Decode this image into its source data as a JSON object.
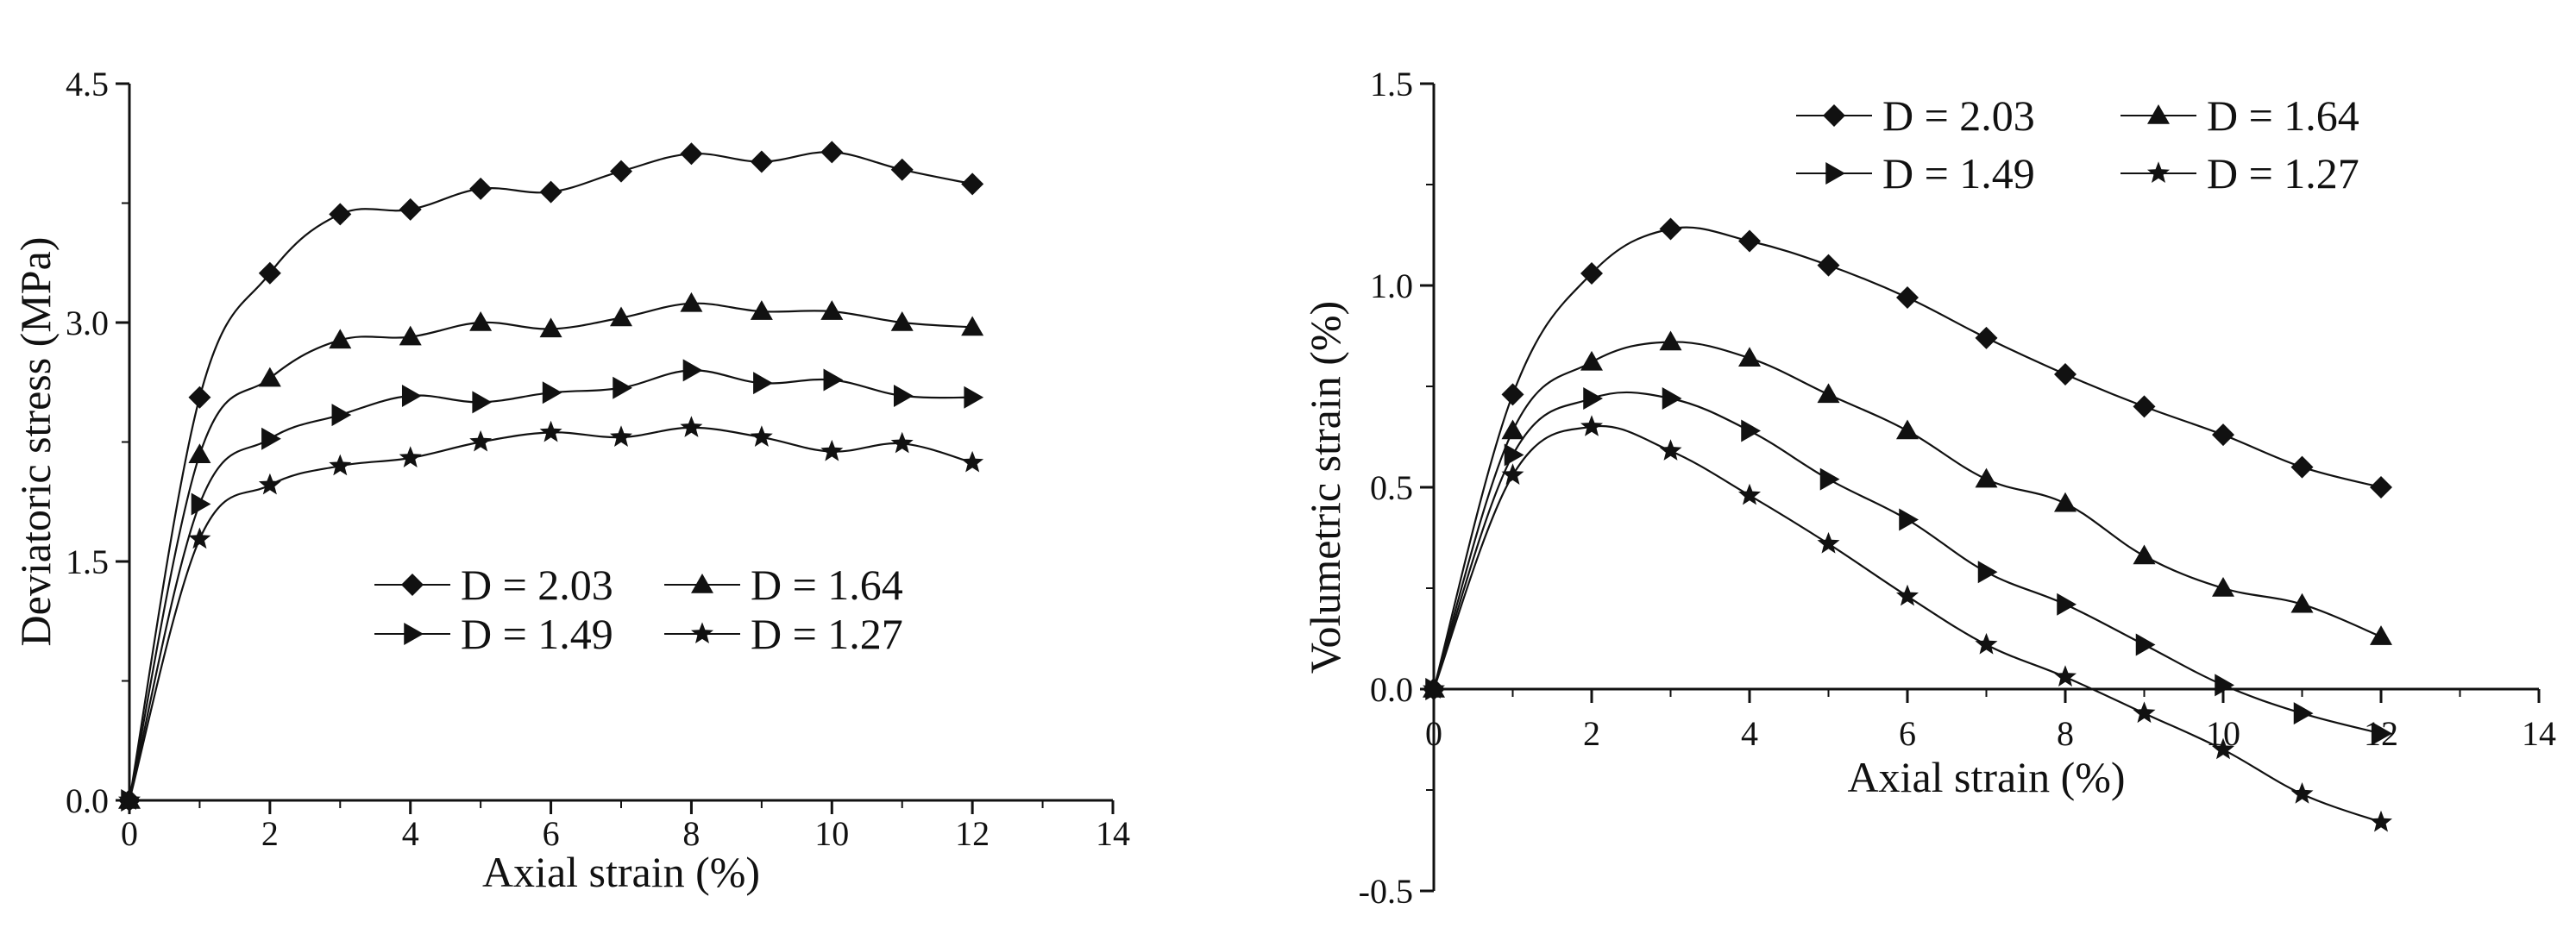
{
  "colors": {
    "ink": "#111111",
    "background": "#ffffff"
  },
  "marker_shapes": [
    "diamond",
    "triangle-up",
    "triangle-right",
    "star"
  ],
  "chart_data": [
    {
      "type": "line",
      "title": "",
      "xlabel": "Axial strain (%)",
      "ylabel": "Deviatoric stress (MPa)",
      "xlim": [
        0,
        14
      ],
      "ylim": [
        0,
        4.5
      ],
      "xticks": [
        "0",
        "2",
        "4",
        "6",
        "8",
        "10",
        "12",
        "14"
      ],
      "yticks": [
        "0.0",
        "1.5",
        "3.0",
        "4.5"
      ],
      "grid": false,
      "legend_position": "lower-right",
      "x": [
        0,
        1,
        2,
        3,
        4,
        5,
        6,
        7,
        8,
        9,
        10,
        11,
        12
      ],
      "series": [
        {
          "name": "D = 2.03",
          "marker": "diamond",
          "values": [
            0,
            2.53,
            3.31,
            3.68,
            3.71,
            3.84,
            3.82,
            3.95,
            4.06,
            4.01,
            4.07,
            3.96,
            3.87
          ]
        },
        {
          "name": "D = 1.64",
          "marker": "triangle-up",
          "values": [
            0,
            2.17,
            2.65,
            2.89,
            2.91,
            3.0,
            2.96,
            3.03,
            3.12,
            3.07,
            3.07,
            3.0,
            2.97
          ]
        },
        {
          "name": "D = 1.49",
          "marker": "triangle-right",
          "values": [
            0,
            1.86,
            2.27,
            2.42,
            2.54,
            2.5,
            2.56,
            2.59,
            2.7,
            2.62,
            2.64,
            2.54,
            2.53
          ]
        },
        {
          "name": "D = 1.27",
          "marker": "star",
          "values": [
            0,
            1.64,
            1.98,
            2.1,
            2.15,
            2.25,
            2.31,
            2.28,
            2.34,
            2.28,
            2.19,
            2.24,
            2.12
          ]
        }
      ]
    },
    {
      "type": "line",
      "title": "",
      "xlabel": "Axial strain (%)",
      "ylabel": "Volumetric strain (%)",
      "xlim": [
        0,
        14
      ],
      "ylim": [
        -0.5,
        1.5
      ],
      "xticks": [
        "0",
        "2",
        "4",
        "6",
        "8",
        "10",
        "12",
        "14"
      ],
      "yticks": [
        "-0.5",
        "0.0",
        "0.5",
        "1.0",
        "1.5"
      ],
      "grid": false,
      "legend_position": "top-right",
      "x": [
        0,
        1,
        2,
        3,
        4,
        5,
        6,
        7,
        8,
        9,
        10,
        11,
        12
      ],
      "series": [
        {
          "name": "D = 2.03",
          "marker": "diamond",
          "values": [
            0,
            0.73,
            1.03,
            1.14,
            1.11,
            1.05,
            0.97,
            0.87,
            0.78,
            0.7,
            0.63,
            0.55,
            0.5
          ]
        },
        {
          "name": "D = 1.64",
          "marker": "triangle-up",
          "values": [
            0,
            0.64,
            0.81,
            0.86,
            0.82,
            0.73,
            0.64,
            0.52,
            0.46,
            0.33,
            0.25,
            0.21,
            0.13
          ]
        },
        {
          "name": "D = 1.49",
          "marker": "triangle-right",
          "values": [
            0,
            0.58,
            0.72,
            0.72,
            0.64,
            0.52,
            0.42,
            0.29,
            0.21,
            0.11,
            0.01,
            -0.06,
            -0.11
          ]
        },
        {
          "name": "D = 1.27",
          "marker": "star",
          "values": [
            0,
            0.53,
            0.65,
            0.59,
            0.48,
            0.36,
            0.23,
            0.11,
            0.03,
            -0.06,
            -0.15,
            -0.26,
            -0.33
          ]
        }
      ]
    }
  ]
}
